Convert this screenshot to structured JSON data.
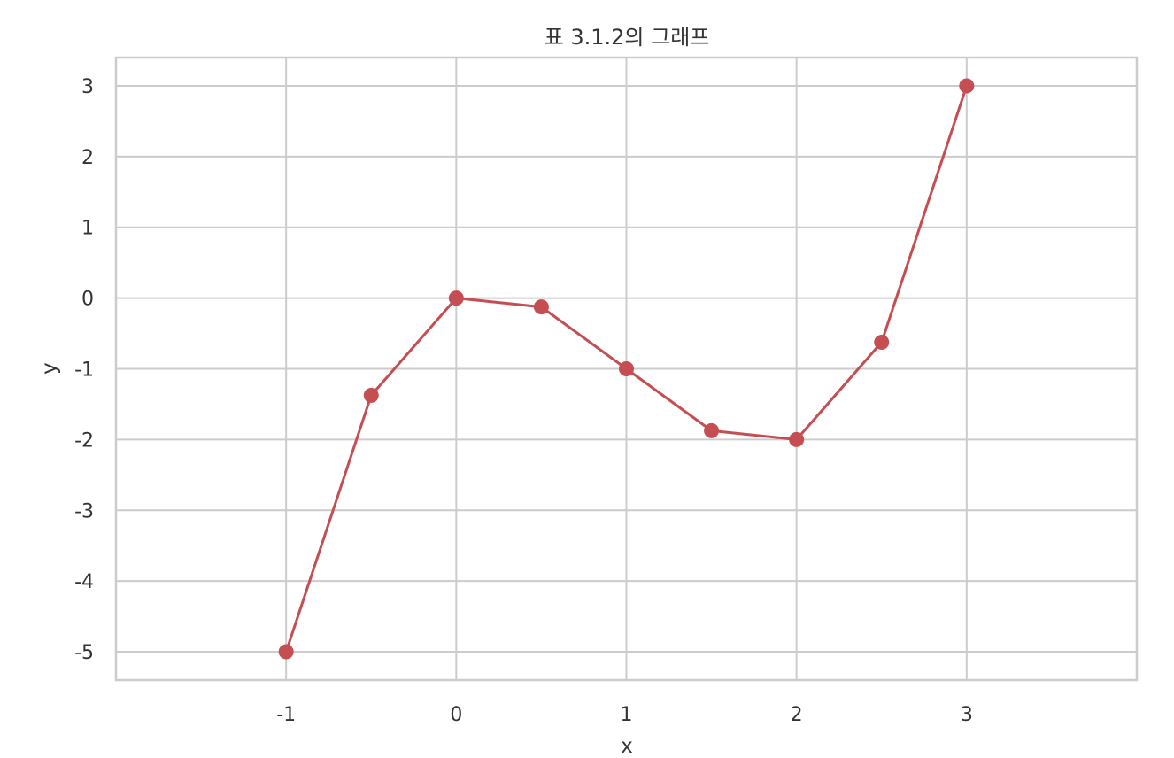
{
  "chart_data": {
    "type": "line",
    "title": "표 3.1.2의 그래프",
    "xlabel": "x",
    "ylabel": "y",
    "xlim": [
      -2,
      4
    ],
    "ylim": [
      -5.4,
      3.4
    ],
    "xticks": [
      -1,
      0,
      1,
      2,
      3
    ],
    "yticks": [
      3,
      2,
      1,
      0,
      -1,
      -2,
      -3,
      -4,
      -5
    ],
    "grid": true,
    "series": [
      {
        "color": "#c44e52",
        "marker": "circle",
        "x": [
          -1,
          -0.5,
          0,
          0.5,
          1,
          1.5,
          2,
          2.5,
          3
        ],
        "y": [
          -5,
          -1.375,
          0,
          -0.125,
          -1,
          -1.875,
          -2,
          -0.625,
          3
        ]
      }
    ]
  }
}
